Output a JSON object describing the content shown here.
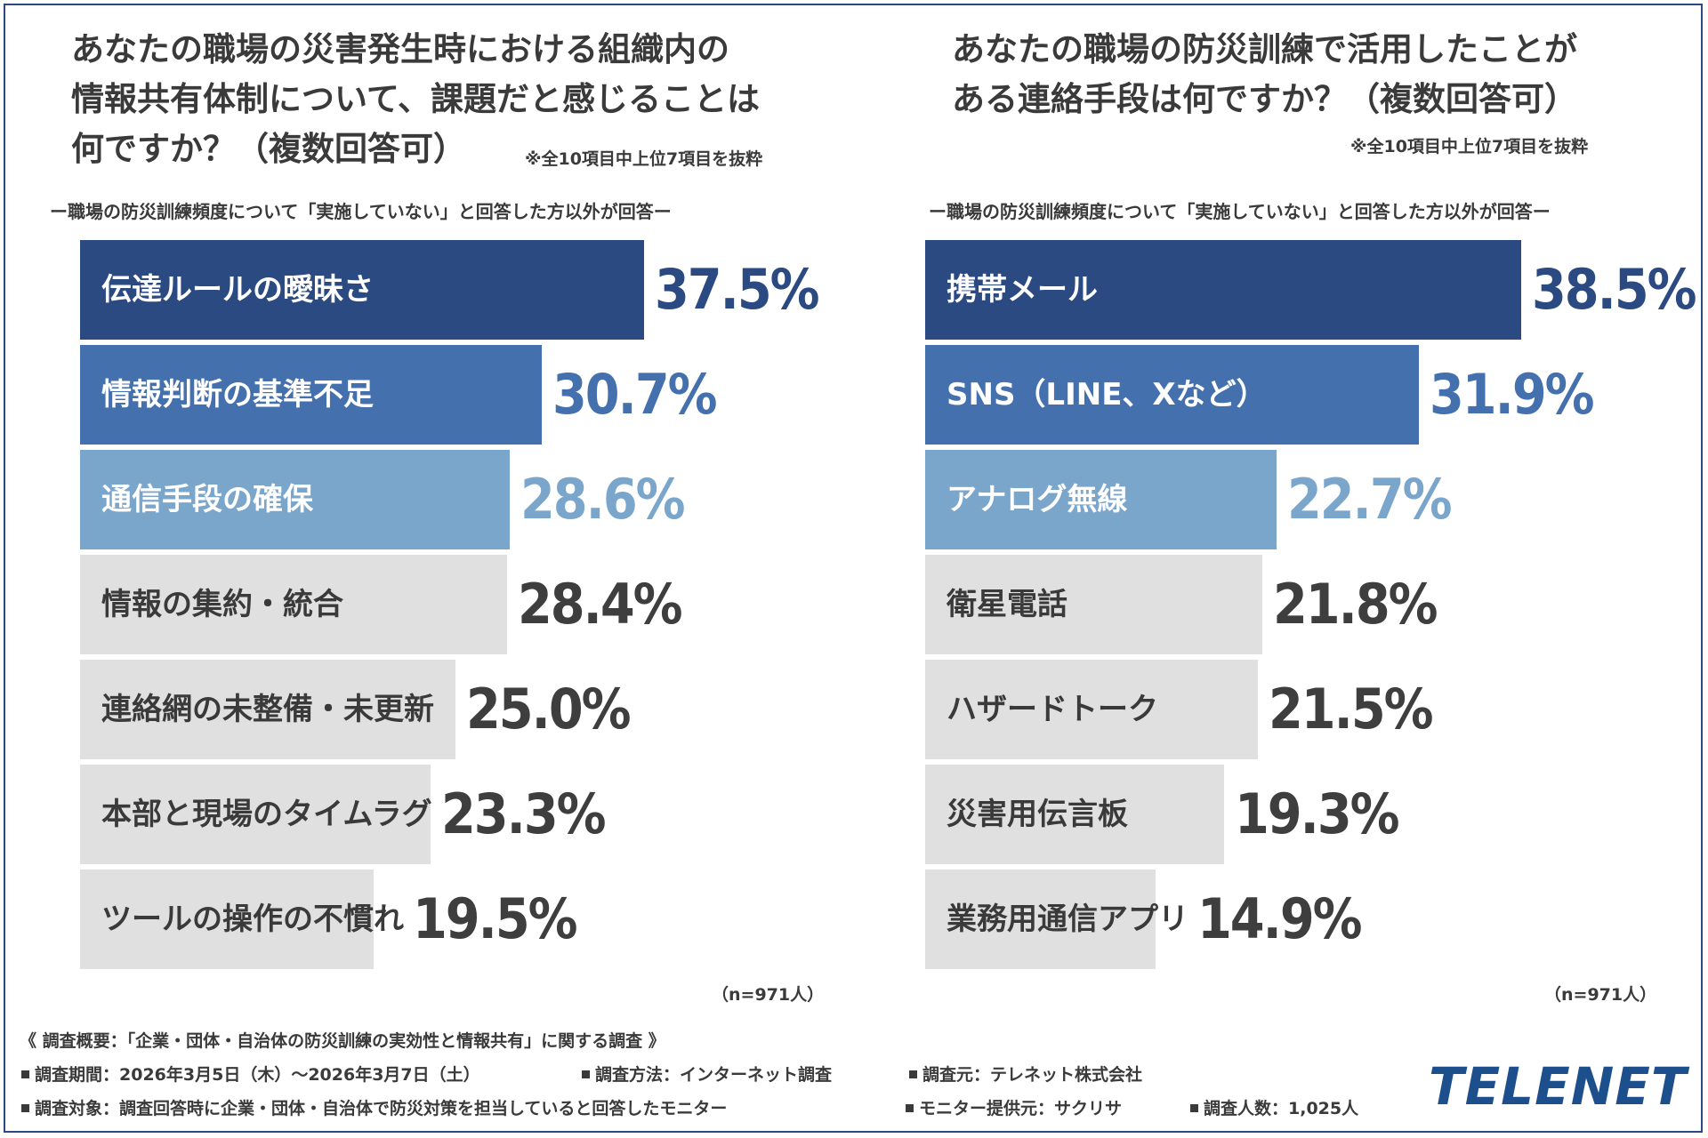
{
  "charts": [
    {
      "title": "あなたの職場の災害発生時における組織内の\n情報共有体制について、課題だと感じることは\n何ですか？（複数回答可）",
      "note": "※全10項目中上位7項目を抜粋",
      "subtitle": "ー職場の防災訓練頻度について「実施していない」と回答した方以外が回答ー",
      "n_label": "（n=971人）"
    },
    {
      "title": "あなたの職場の防災訓練で活用したことが\nある連絡手段は何ですか？（複数回答可）",
      "note": "※全10項目中上位7項目を抜粋",
      "subtitle": "ー職場の防災訓練頻度について「実施していない」と回答した方以外が回答ー",
      "n_label": "（n=971人）"
    }
  ],
  "chart_data": [
    {
      "type": "bar",
      "orientation": "horizontal",
      "title": "あなたの職場の災害発生時における組織内の情報共有体制について、課題だと感じることは何ですか？（複数回答可）",
      "unit": "%",
      "categories": [
        "伝達ルールの曖昧さ",
        "情報判断の基準不足",
        "通信手段の確保",
        "情報の集約・統合",
        "連絡網の未整備・未更新",
        "本部と現場のタイムラグ",
        "ツールの操作の不慣れ"
      ],
      "values": [
        37.5,
        30.7,
        28.6,
        28.4,
        25.0,
        23.3,
        19.5
      ],
      "value_labels": [
        "37.5%",
        "30.7%",
        "28.6%",
        "28.4%",
        "25.0%",
        "23.3%",
        "19.5%"
      ],
      "xlim": [
        0,
        100
      ]
    },
    {
      "type": "bar",
      "orientation": "horizontal",
      "title": "あなたの職場の防災訓練で活用したことがある連絡手段は何ですか？（複数回答可）",
      "unit": "%",
      "categories": [
        "携帯メール",
        "SNS（LINE、Xなど）",
        "アナログ無線",
        "衛星電話",
        "ハザードトーク",
        "災害用伝言板",
        "業務用通信アプリ"
      ],
      "values": [
        38.5,
        31.9,
        22.7,
        21.8,
        21.5,
        19.3,
        14.9
      ],
      "value_labels": [
        "38.5%",
        "31.9%",
        "22.7%",
        "21.8%",
        "21.5%",
        "19.3%",
        "14.9%"
      ],
      "xlim": [
        0,
        100
      ]
    }
  ],
  "colors": {
    "rank1": "#2c4a82",
    "rank2": "#4471ae",
    "rank3": "#7ba6cc",
    "other": "#e0e0e0",
    "text_dark": "#3a3a3a",
    "text_light": "#ffffff",
    "value_other": "#3e3e3e"
  },
  "footer": {
    "summary": "《 調査概要：「企業・団体・自治体の防災訓練の実効性と情報共有」に関する調査 》",
    "period": "調査期間：2026年3月5日（木）〜2026年3月7日（土）",
    "method": "調査方法：インターネット調査",
    "source": "調査元：テレネット株式会社",
    "target": "調査対象：調査回答時に企業・団体・自治体で防災対策を担当していると回答したモニター",
    "provider": "モニター提供元：サクリサ",
    "count": "調査人数：1,025人"
  },
  "logo": "TELENET"
}
